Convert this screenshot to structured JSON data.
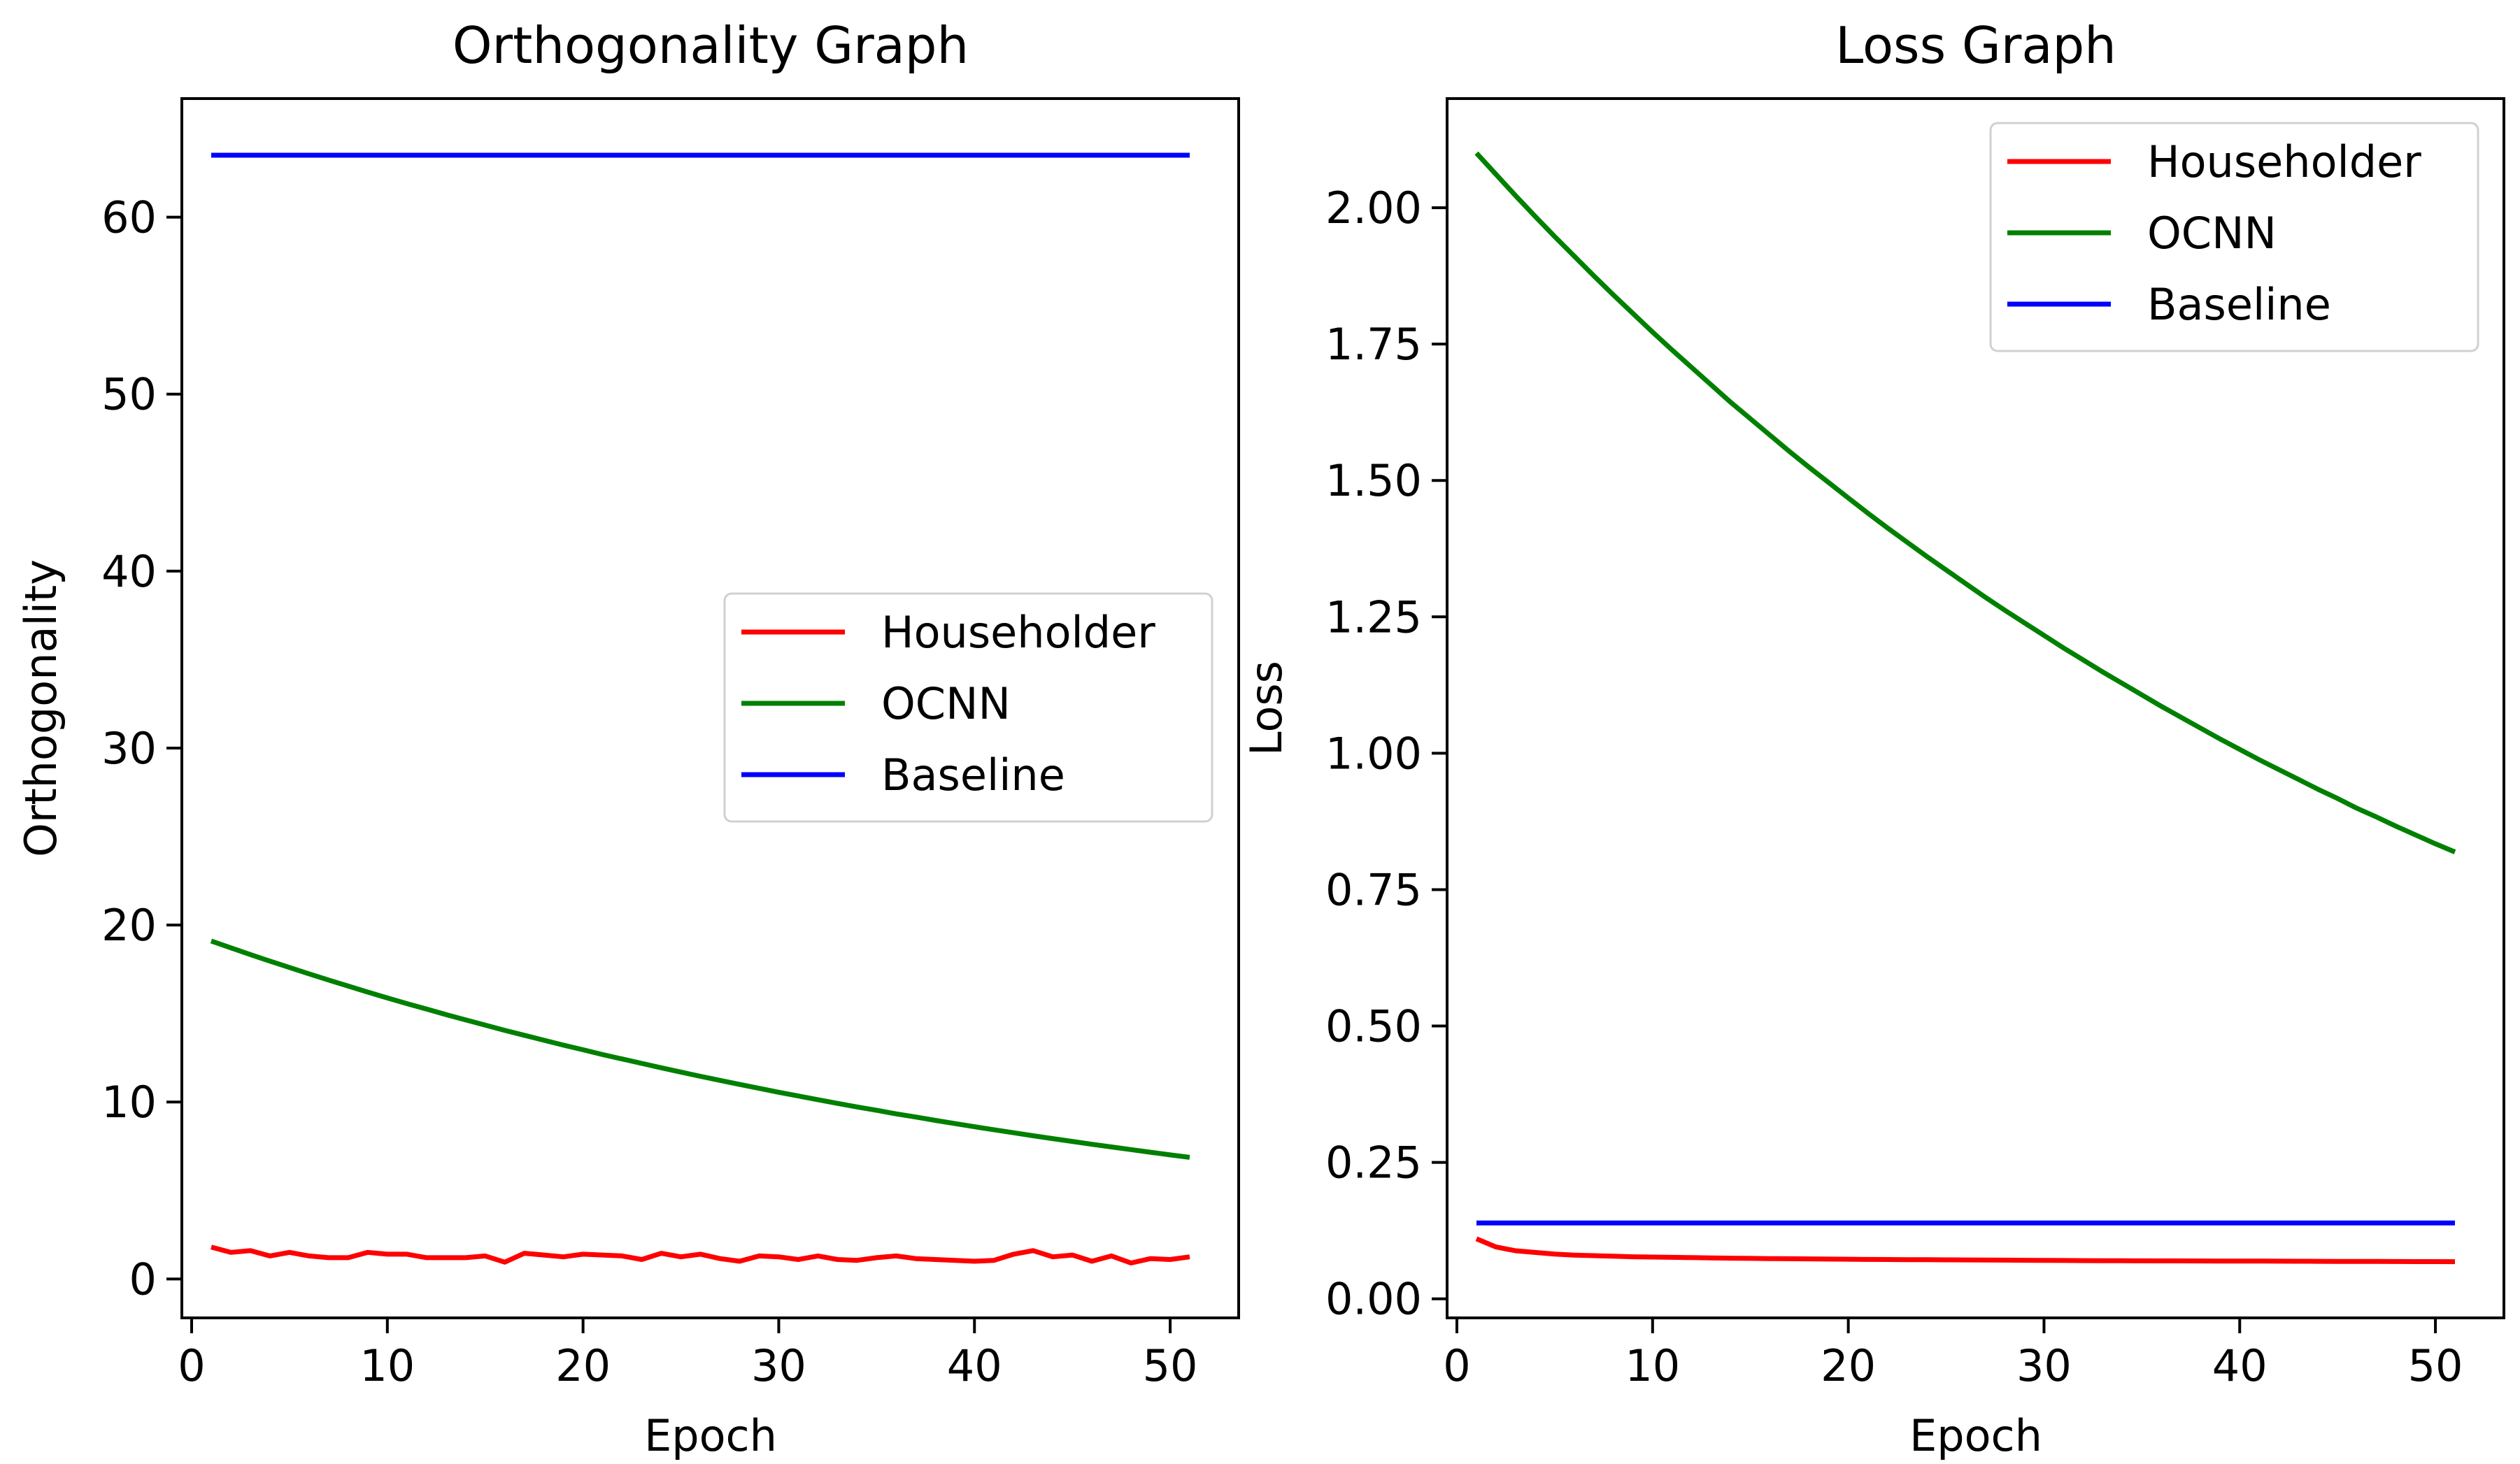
{
  "chart_data": [
    {
      "type": "line",
      "title": "Orthogonality Graph",
      "xlabel": "Epoch",
      "ylabel": "Orthogonality",
      "xlim": [
        -0.5,
        53.5
      ],
      "ylim": [
        -2.2,
        66.7
      ],
      "xticks": [
        0,
        10,
        20,
        30,
        40,
        50
      ],
      "yticks": [
        0,
        10,
        20,
        30,
        40,
        50,
        60
      ],
      "ytick_labels": [
        "0",
        "10",
        "20",
        "30",
        "40",
        "50",
        "60"
      ],
      "grid": false,
      "legend_position": "center-right",
      "series": [
        {
          "name": "Householder",
          "color": "#ff0000",
          "x": [
            1,
            2,
            3,
            4,
            5,
            6,
            7,
            8,
            9,
            10,
            11,
            12,
            13,
            14,
            15,
            16,
            17,
            18,
            19,
            20,
            21,
            22,
            23,
            24,
            25,
            26,
            27,
            28,
            29,
            30,
            31,
            32,
            33,
            34,
            35,
            36,
            37,
            38,
            39,
            40,
            41,
            42,
            43,
            44,
            45,
            46,
            47,
            48,
            49,
            50,
            51
          ],
          "values": [
            1.8,
            1.5,
            1.6,
            1.3,
            1.5,
            1.3,
            1.2,
            1.2,
            1.5,
            1.4,
            1.4,
            1.2,
            1.2,
            1.2,
            1.3,
            0.95,
            1.45,
            1.35,
            1.25,
            1.4,
            1.35,
            1.3,
            1.1,
            1.45,
            1.25,
            1.4,
            1.15,
            1.0,
            1.3,
            1.25,
            1.1,
            1.3,
            1.1,
            1.05,
            1.2,
            1.3,
            1.15,
            1.1,
            1.05,
            1.0,
            1.05,
            1.4,
            1.6,
            1.25,
            1.35,
            1.0,
            1.3,
            0.9,
            1.15,
            1.1,
            1.25
          ]
        },
        {
          "name": "OCNN",
          "color": "#008000",
          "x": [
            1,
            2,
            3,
            4,
            5,
            6,
            7,
            8,
            9,
            10,
            11,
            12,
            13,
            14,
            15,
            16,
            17,
            18,
            19,
            20,
            21,
            22,
            23,
            24,
            25,
            26,
            27,
            28,
            29,
            30,
            31,
            32,
            33,
            34,
            35,
            36,
            37,
            38,
            39,
            40,
            41,
            42,
            43,
            44,
            45,
            46,
            47,
            48,
            49,
            50,
            51
          ],
          "values": [
            19.1,
            18.71,
            18.33,
            17.96,
            17.6,
            17.24,
            16.89,
            16.55,
            16.21,
            15.88,
            15.56,
            15.25,
            14.94,
            14.64,
            14.34,
            14.05,
            13.77,
            13.49,
            13.21,
            12.95,
            12.68,
            12.43,
            12.18,
            11.93,
            11.69,
            11.45,
            11.22,
            10.99,
            10.77,
            10.55,
            10.34,
            10.13,
            9.92,
            9.72,
            9.53,
            9.33,
            9.15,
            8.96,
            8.78,
            8.6,
            8.43,
            8.26,
            8.09,
            7.93,
            7.77,
            7.61,
            7.46,
            7.31,
            7.16,
            7.01,
            6.87
          ]
        },
        {
          "name": "Baseline",
          "color": "#0000ff",
          "x": [
            1,
            51
          ],
          "values": [
            63.5,
            63.5
          ]
        }
      ]
    },
    {
      "type": "line",
      "title": "Loss Graph",
      "xlabel": "Epoch",
      "ylabel": "Loss",
      "xlim": [
        -0.5,
        53.5
      ],
      "ylim": [
        -0.035,
        2.2
      ],
      "xticks": [
        0,
        10,
        20,
        30,
        40,
        50
      ],
      "yticks": [
        0,
        0.25,
        0.5,
        0.75,
        1.0,
        1.25,
        1.5,
        1.75,
        2.0
      ],
      "ytick_labels": [
        "0.00",
        "0.25",
        "0.50",
        "0.75",
        "1.00",
        "1.25",
        "1.50",
        "1.75",
        "2.00"
      ],
      "grid": false,
      "legend_position": "upper-right",
      "series": [
        {
          "name": "Householder",
          "color": "#ff0000",
          "x": [
            1,
            2,
            3,
            4,
            5,
            6,
            7,
            8,
            9,
            10,
            11,
            12,
            13,
            14,
            15,
            16,
            17,
            18,
            19,
            20,
            21,
            22,
            23,
            24,
            25,
            26,
            27,
            28,
            29,
            30,
            31,
            32,
            33,
            34,
            35,
            36,
            37,
            38,
            39,
            40,
            41,
            42,
            43,
            44,
            45,
            46,
            47,
            48,
            49,
            50,
            51
          ],
          "values": [
            0.11,
            0.095,
            0.088,
            0.085,
            0.082,
            0.08,
            0.079,
            0.078,
            0.077,
            0.0765,
            0.076,
            0.0755,
            0.075,
            0.0745,
            0.074,
            0.0737,
            0.0734,
            0.0731,
            0.0728,
            0.0725,
            0.0722,
            0.072,
            0.0718,
            0.0716,
            0.0714,
            0.0712,
            0.071,
            0.0708,
            0.0706,
            0.0704,
            0.0702,
            0.07,
            0.0698,
            0.0697,
            0.0696,
            0.0695,
            0.0694,
            0.0693,
            0.0692,
            0.0691,
            0.069,
            0.0689,
            0.0688,
            0.0687,
            0.0686,
            0.0685,
            0.0684,
            0.0683,
            0.0682,
            0.0681,
            0.068
          ]
        },
        {
          "name": "OCNN",
          "color": "#008000",
          "x": [
            1,
            2,
            3,
            4,
            5,
            6,
            7,
            8,
            9,
            10,
            11,
            12,
            13,
            14,
            15,
            16,
            17,
            18,
            19,
            20,
            21,
            22,
            23,
            24,
            25,
            26,
            27,
            28,
            29,
            30,
            31,
            32,
            33,
            34,
            35,
            36,
            37,
            38,
            39,
            40,
            41,
            42,
            43,
            44,
            45,
            46,
            47,
            48,
            49,
            50,
            51
          ],
          "values": [
            2.1,
            2.061,
            2.022,
            1.984,
            1.947,
            1.911,
            1.875,
            1.84,
            1.806,
            1.772,
            1.739,
            1.707,
            1.675,
            1.643,
            1.613,
            1.583,
            1.553,
            1.524,
            1.496,
            1.468,
            1.44,
            1.413,
            1.387,
            1.361,
            1.336,
            1.311,
            1.286,
            1.262,
            1.239,
            1.216,
            1.193,
            1.171,
            1.149,
            1.128,
            1.107,
            1.086,
            1.066,
            1.046,
            1.026,
            1.007,
            0.988,
            0.97,
            0.952,
            0.934,
            0.917,
            0.899,
            0.883,
            0.866,
            0.85,
            0.834,
            0.819
          ]
        },
        {
          "name": "Baseline",
          "color": "#0000ff",
          "x": [
            1,
            51
          ],
          "values": [
            0.139,
            0.139
          ]
        }
      ]
    }
  ]
}
